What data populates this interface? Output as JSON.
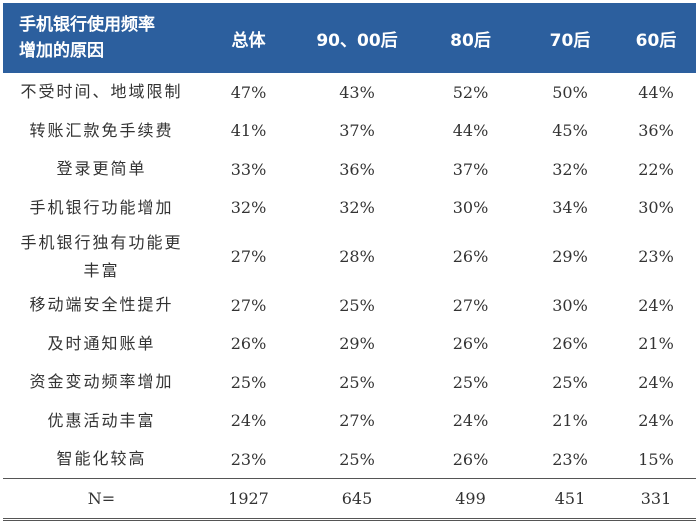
{
  "header": {
    "col0_line1": "手机银行使用频率",
    "col0_line2": "增加的原因",
    "columns": [
      "总体",
      "90、00后",
      "80后",
      "70后",
      "60后"
    ]
  },
  "rows": [
    {
      "label": "不受时间、地域限制",
      "values": [
        "47%",
        "43%",
        "52%",
        "50%",
        "44%"
      ]
    },
    {
      "label": "转账汇款免手续费",
      "values": [
        "41%",
        "37%",
        "44%",
        "45%",
        "36%"
      ]
    },
    {
      "label": "登录更简单",
      "values": [
        "33%",
        "36%",
        "37%",
        "32%",
        "22%"
      ]
    },
    {
      "label": "手机银行功能增加",
      "values": [
        "32%",
        "32%",
        "30%",
        "34%",
        "30%"
      ]
    },
    {
      "label": "手机银行独有功能更丰富",
      "label_line1": "手机银行独有功能更",
      "label_line2": "丰富",
      "values": [
        "27%",
        "28%",
        "26%",
        "29%",
        "23%"
      ]
    },
    {
      "label": "移动端安全性提升",
      "values": [
        "27%",
        "25%",
        "27%",
        "30%",
        "24%"
      ]
    },
    {
      "label": "及时通知账单",
      "values": [
        "26%",
        "29%",
        "26%",
        "26%",
        "21%"
      ]
    },
    {
      "label": "资金变动频率增加",
      "values": [
        "25%",
        "25%",
        "25%",
        "25%",
        "24%"
      ]
    },
    {
      "label": "优惠活动丰富",
      "values": [
        "24%",
        "27%",
        "24%",
        "21%",
        "24%"
      ]
    },
    {
      "label": "智能化较高",
      "values": [
        "23%",
        "25%",
        "26%",
        "23%",
        "15%"
      ]
    }
  ],
  "total": {
    "label": "N=",
    "values": [
      "1927",
      "645",
      "499",
      "451",
      "331"
    ]
  },
  "colors": {
    "header_bg": "#2c5f9e",
    "header_text": "#ffffff"
  }
}
